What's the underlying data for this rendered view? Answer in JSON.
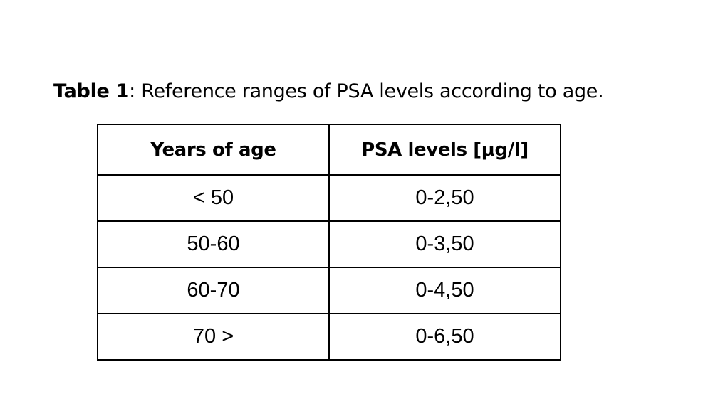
{
  "caption": {
    "label": "Table 1",
    "text": ": Reference ranges of PSA levels according to age."
  },
  "table": {
    "headers": [
      "Years of age",
      "PSA levels [µg/l]"
    ],
    "rows": [
      [
        "< 50",
        "0-2,50"
      ],
      [
        "50-60",
        "0-3,50"
      ],
      [
        "60-70",
        "0-4,50"
      ],
      [
        "70 >",
        "0-6,50"
      ]
    ]
  }
}
